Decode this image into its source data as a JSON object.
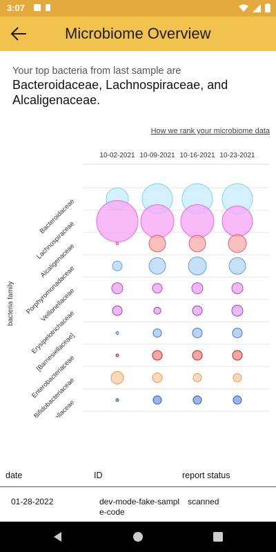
{
  "status": {
    "time": "3:07"
  },
  "header": {
    "title": "Microbiome Overview"
  },
  "intro": {
    "line1": "Your top bacteria from last sample are",
    "line2": "Bacteroidaceae, Lachnospiraceae, and Alcaligenaceae."
  },
  "rank_link": "How we rank your microbiome data",
  "chart_data": {
    "type": "scatter",
    "ylabel": "bacteria family",
    "dates": [
      "10-02-2021",
      "10-09-2021",
      "10-16-2021",
      "10-23-2021"
    ],
    "families": [
      {
        "name": "Bacteroidaceae",
        "fill": "#c9eefc",
        "stroke": "#7fd3f2",
        "values": [
          16,
          22,
          22,
          22
        ]
      },
      {
        "name": "Lachnospiraceae",
        "fill": "#f7aaf5",
        "stroke": "#e864e3",
        "values": [
          30,
          24,
          24,
          22
        ]
      },
      {
        "name": "Alcaligenaceae",
        "fill": "#f7b0b0",
        "stroke": "#e05c5c",
        "values": [
          2,
          12,
          12,
          13
        ]
      },
      {
        "name": "Porphyromonadaceae",
        "fill": "#b8d8f7",
        "stroke": "#5e9fe0",
        "values": [
          7,
          12,
          13,
          12
        ]
      },
      {
        "name": "Veillonellaceae",
        "fill": "#eaa6f2",
        "stroke": "#b04ac2",
        "values": [
          8,
          7,
          8,
          8
        ]
      },
      {
        "name": "Erysipelotrichaceae",
        "fill": "#e4a9f0",
        "stroke": "#a03cbf",
        "values": [
          7,
          5,
          7,
          8
        ]
      },
      {
        "name": "[Barnesiellaceae]",
        "fill": "#a8c8f0",
        "stroke": "#3d78c8",
        "values": [
          2,
          6,
          7,
          7
        ]
      },
      {
        "name": "Enterobacteriaceae",
        "fill": "#f09090",
        "stroke": "#b22222",
        "values": [
          2,
          7,
          7,
          7
        ]
      },
      {
        "name": "Bifidobacteriaceae",
        "fill": "#f9cfa8",
        "stroke": "#e49a5a",
        "values": [
          9,
          7,
          6,
          6
        ]
      },
      {
        "name": "Rikenellaceae",
        "fill": "#7fa2e6",
        "stroke": "#2a52b0",
        "values": [
          2,
          6,
          6,
          6
        ]
      }
    ]
  },
  "table": {
    "headers": {
      "date": "date",
      "id": "ID",
      "status": "report status"
    },
    "rows": [
      {
        "date": "01-28-2022",
        "id": "dev-mode-fake-sample-code",
        "status": "scanned"
      }
    ]
  }
}
